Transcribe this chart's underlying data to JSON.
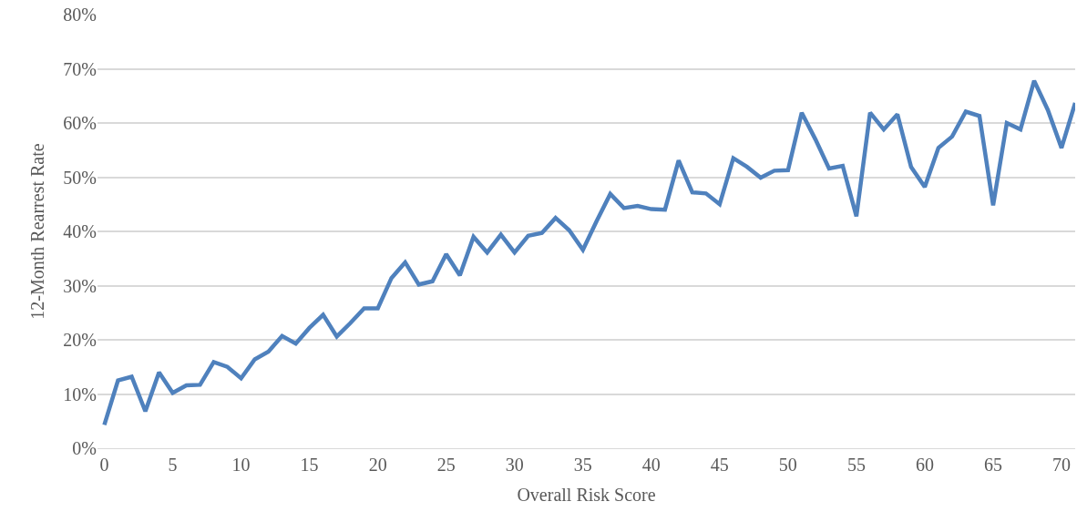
{
  "chart_data": {
    "type": "line",
    "xlabel": "Overall Risk Score",
    "ylabel": "12-Month Rearrest Rate",
    "x": [
      0,
      1,
      2,
      3,
      4,
      5,
      6,
      7,
      8,
      9,
      10,
      11,
      12,
      13,
      14,
      15,
      16,
      17,
      18,
      19,
      20,
      21,
      22,
      23,
      24,
      25,
      26,
      27,
      28,
      29,
      30,
      31,
      32,
      33,
      34,
      35,
      36,
      37,
      38,
      39,
      40,
      41,
      42,
      43,
      44,
      45,
      46,
      47,
      48,
      49,
      50,
      51,
      52,
      53,
      54,
      55,
      56,
      57,
      58,
      59,
      60,
      61,
      62,
      63,
      64,
      65,
      66,
      67,
      68,
      69,
      70,
      71
    ],
    "series": [
      {
        "color": "#4f81bd",
        "values": [
          4.3,
          12.5,
          13.2,
          6.8,
          14.0,
          10.2,
          11.6,
          11.7,
          15.9,
          15.0,
          12.9,
          16.4,
          17.8,
          20.7,
          19.3,
          22.2,
          24.6,
          20.6,
          23.1,
          25.8,
          25.8,
          31.4,
          34.3,
          30.2,
          30.8,
          35.8,
          31.9,
          39.0,
          36.1,
          39.4,
          36.1,
          39.2,
          39.7,
          42.5,
          40.2,
          36.6,
          41.9,
          46.9,
          44.3,
          44.7,
          44.1,
          44.0,
          53.1,
          47.2,
          47.0,
          45.0,
          53.5,
          51.9,
          49.9,
          51.2,
          51.3,
          61.9,
          57.0,
          51.6,
          52.1,
          42.8,
          61.9,
          58.8,
          61.6,
          51.9,
          48.2,
          55.4,
          57.5,
          62.1,
          61.3,
          44.8,
          60.0,
          58.8,
          67.8,
          62.4,
          55.4,
          63.7
        ]
      }
    ],
    "xlim": [
      -0.5,
      71
    ],
    "xticks": [
      0,
      5,
      10,
      15,
      20,
      25,
      30,
      35,
      40,
      45,
      50,
      55,
      60,
      65,
      70
    ],
    "ylim": [
      0,
      80
    ],
    "yticks": [
      {
        "value": 0,
        "label": "0%"
      },
      {
        "value": 10,
        "label": "10%"
      },
      {
        "value": 20,
        "label": "20%"
      },
      {
        "value": 30,
        "label": "30%"
      },
      {
        "value": 40,
        "label": "40%"
      },
      {
        "value": 50,
        "label": "50%"
      },
      {
        "value": 60,
        "label": "60%"
      },
      {
        "value": 70,
        "label": "70%"
      },
      {
        "value": 80,
        "label": "80%"
      }
    ],
    "grid": "y",
    "marker": "none",
    "line_style": "solid"
  }
}
